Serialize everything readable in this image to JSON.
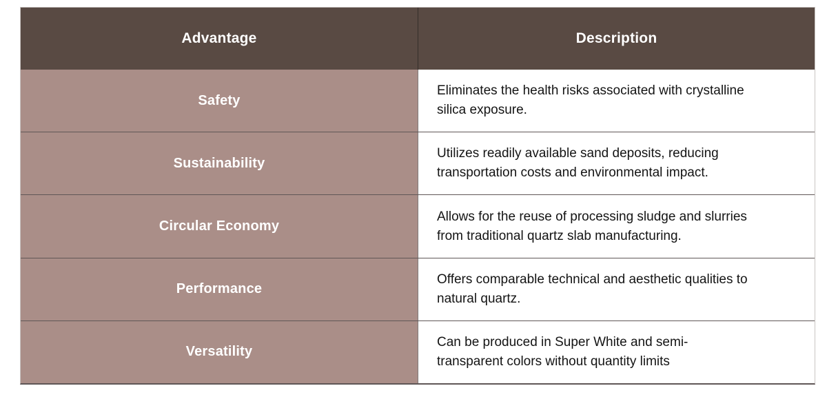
{
  "page": {
    "background": "#ffffff"
  },
  "table": {
    "columns": [
      {
        "label": "Advantage"
      },
      {
        "label": "Description"
      }
    ],
    "rows": [
      {
        "advantage": "Safety",
        "description": "Eliminates the health risks associated with crystalline\nsilica exposure."
      },
      {
        "advantage": "Sustainability",
        "description": "Utilizes readily available sand deposits, reducing\ntransportation costs and environmental impact."
      },
      {
        "advantage": "Circular Economy",
        "description": "Allows for the reuse of processing sludge and slurries\nfrom traditional quartz slab manufacturing."
      },
      {
        "advantage": "Performance",
        "description": "Offers comparable technical and aesthetic qualities to\nnatural quartz."
      },
      {
        "advantage": "Versatility",
        "description": "Can be produced in Super White and semi-\ntransparent colors without quantity limits"
      }
    ],
    "colors": {
      "header_bg": "#594a43",
      "header_text": "#ffffff",
      "advantage_bg": "#aa8e88",
      "advantage_text": "#ffffff",
      "description_bg": "#ffffff",
      "description_text": "#141414",
      "row_divider": "#5f5656",
      "column_divider_body": "#7d7878",
      "column_divider_header": "#352e2a",
      "outer_border": "#c9c4c2",
      "page_bg": "#ffffff"
    }
  }
}
